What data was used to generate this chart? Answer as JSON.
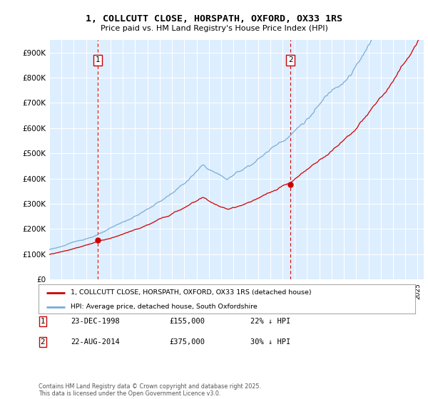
{
  "title": "1, COLLCUTT CLOSE, HORSPATH, OXFORD, OX33 1RS",
  "subtitle": "Price paid vs. HM Land Registry's House Price Index (HPI)",
  "background_color": "#ffffff",
  "plot_bg_color": "#ddeeff",
  "grid_color": "#ffffff",
  "ylim": [
    0,
    950000
  ],
  "yticks": [
    0,
    100000,
    200000,
    300000,
    400000,
    500000,
    600000,
    700000,
    800000,
    900000
  ],
  "ytick_labels": [
    "£0",
    "£100K",
    "£200K",
    "£300K",
    "£400K",
    "£500K",
    "£600K",
    "£700K",
    "£800K",
    "£900K"
  ],
  "sale1_date": 1998.97,
  "sale1_price": 155000,
  "sale1_label": "1",
  "sale2_date": 2014.64,
  "sale2_price": 375000,
  "sale2_label": "2",
  "legend_line1": "1, COLLCUTT CLOSE, HORSPATH, OXFORD, OX33 1RS (detached house)",
  "legend_line2": "HPI: Average price, detached house, South Oxfordshire",
  "table_row1": [
    "1",
    "23-DEC-1998",
    "£155,000",
    "22% ↓ HPI"
  ],
  "table_row2": [
    "2",
    "22-AUG-2014",
    "£375,000",
    "30% ↓ HPI"
  ],
  "footnote": "Contains HM Land Registry data © Crown copyright and database right 2025.\nThis data is licensed under the Open Government Licence v3.0.",
  "sale_color": "#cc0000",
  "hpi_color": "#7aadd4",
  "vline_color": "#cc0000",
  "marker_color": "#cc0000",
  "xlim_start": 1995.0,
  "xlim_end": 2025.5
}
